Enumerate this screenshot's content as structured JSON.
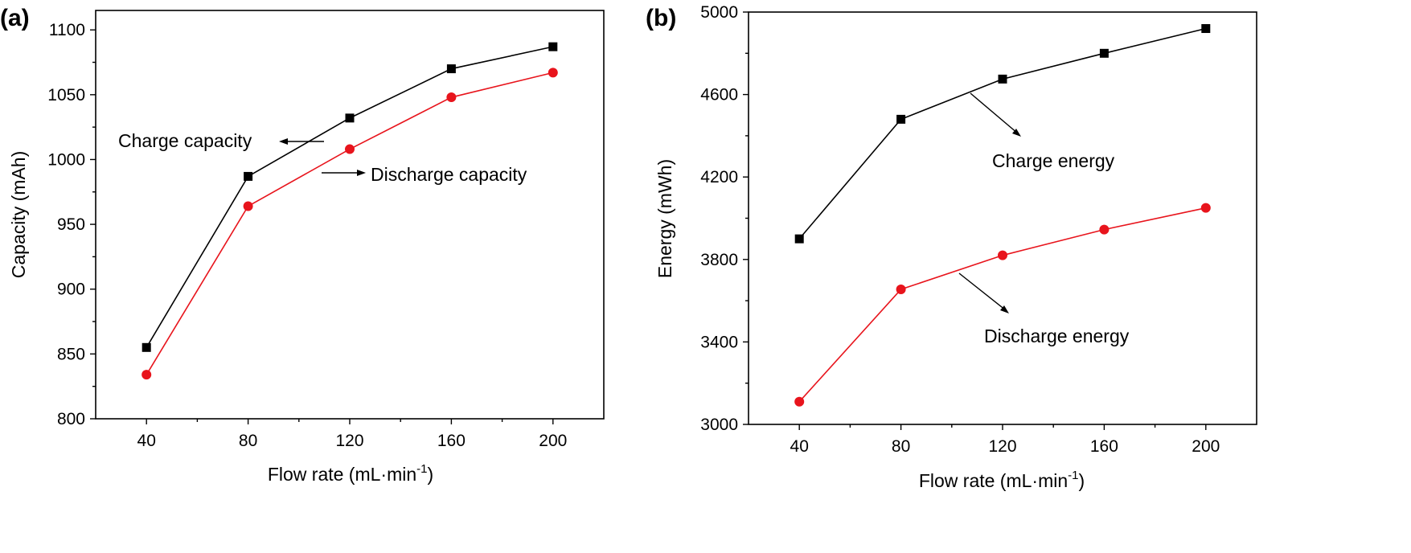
{
  "chart_data": [
    {
      "type": "line",
      "panel_label": "(a)",
      "x": [
        40,
        80,
        120,
        160,
        200
      ],
      "xlabel_main": "Flow rate (mL·min",
      "xlabel_sup": "-1",
      "xlabel_tail": ")",
      "ylabel": "Capacity (mAh)",
      "xticks": [
        "40",
        "80",
        "120",
        "160",
        "200"
      ],
      "yticks": [
        "800",
        "850",
        "900",
        "950",
        "1000",
        "1050",
        "1100"
      ],
      "ylim": [
        800,
        1115
      ],
      "series": [
        {
          "name": "Charge capacity",
          "color": "#000000",
          "marker": "square",
          "values": [
            855,
            987,
            1032,
            1070,
            1087
          ]
        },
        {
          "name": "Discharge capacity",
          "color": "#e8141c",
          "marker": "circle",
          "values": [
            834,
            964,
            1008,
            1048,
            1067
          ]
        }
      ],
      "annotations": [
        {
          "text": "Charge capacity",
          "series": 0
        },
        {
          "text": "Discharge capacity",
          "series": 1
        }
      ]
    },
    {
      "type": "line",
      "panel_label": "(b)",
      "x": [
        40,
        80,
        120,
        160,
        200
      ],
      "xlabel_main": "Flow rate (mL·min",
      "xlabel_sup": "-1",
      "xlabel_tail": ")",
      "ylabel": "Energy (mWh)",
      "xticks": [
        "40",
        "80",
        "120",
        "160",
        "200"
      ],
      "yticks": [
        "3000",
        "3400",
        "3800",
        "4200",
        "4600",
        "5000"
      ],
      "ylim": [
        3000,
        5000
      ],
      "series": [
        {
          "name": "Charge energy",
          "color": "#000000",
          "marker": "square",
          "values": [
            3900,
            4480,
            4675,
            4800,
            4920
          ]
        },
        {
          "name": "Discharge energy",
          "color": "#e8141c",
          "marker": "circle",
          "values": [
            3110,
            3655,
            3820,
            3945,
            4050
          ]
        }
      ],
      "annotations": [
        {
          "text": "Charge energy",
          "series": 0
        },
        {
          "text": "Discharge energy",
          "series": 1
        }
      ]
    }
  ]
}
